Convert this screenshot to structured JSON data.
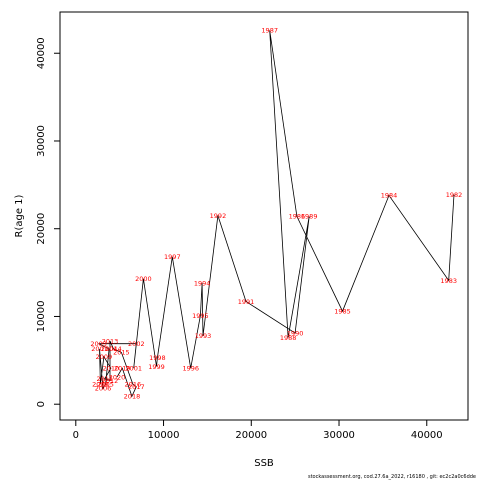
{
  "chart_data": {
    "type": "line",
    "title": "",
    "xlabel": "SSB",
    "ylabel": "R(age 1)",
    "xlim": [
      -1800,
      44700
    ],
    "ylim": [
      -1800,
      44700
    ],
    "xticks": [
      0,
      10000,
      20000,
      30000,
      40000
    ],
    "yticks": [
      0,
      10000,
      20000,
      30000,
      40000
    ],
    "line_color": "#000000",
    "label_color": "#ff0000",
    "points": [
      {
        "label": "1982",
        "x": 43100,
        "y": 23900
      },
      {
        "label": "1983",
        "x": 42500,
        "y": 14100
      },
      {
        "label": "1984",
        "x": 35700,
        "y": 23800
      },
      {
        "label": "1985",
        "x": 30400,
        "y": 10600
      },
      {
        "label": "1986",
        "x": 25200,
        "y": 21400
      },
      {
        "label": "1987",
        "x": 22100,
        "y": 42600
      },
      {
        "label": "1988",
        "x": 24200,
        "y": 7600
      },
      {
        "label": "1989",
        "x": 26600,
        "y": 21400
      },
      {
        "label": "1990",
        "x": 25000,
        "y": 8100
      },
      {
        "label": "1991",
        "x": 19400,
        "y": 11700
      },
      {
        "label": "1992",
        "x": 16200,
        "y": 21500
      },
      {
        "label": "1993",
        "x": 14500,
        "y": 7800
      },
      {
        "label": "1994",
        "x": 14400,
        "y": 13800
      },
      {
        "label": "1995",
        "x": 14200,
        "y": 10100
      },
      {
        "label": "1996",
        "x": 13100,
        "y": 4100
      },
      {
        "label": "1997",
        "x": 11000,
        "y": 16800
      },
      {
        "label": "1998",
        "x": 9300,
        "y": 5300
      },
      {
        "label": "1999",
        "x": 9200,
        "y": 4300
      },
      {
        "label": "2000",
        "x": 7700,
        "y": 14300
      },
      {
        "label": "2001",
        "x": 6600,
        "y": 4100
      },
      {
        "label": "2002",
        "x": 6900,
        "y": 6900
      },
      {
        "label": "2003",
        "x": 2600,
        "y": 6900
      },
      {
        "label": "2004",
        "x": 3800,
        "y": 6300
      },
      {
        "label": "2005",
        "x": 3400,
        "y": 2300
      },
      {
        "label": "2006",
        "x": 3100,
        "y": 1800
      },
      {
        "label": "2007",
        "x": 2700,
        "y": 6300
      },
      {
        "label": "2008",
        "x": 2800,
        "y": 2300
      },
      {
        "label": "2009",
        "x": 3200,
        "y": 5400
      },
      {
        "label": "2010",
        "x": 4000,
        "y": 4100
      },
      {
        "label": "2011",
        "x": 3300,
        "y": 2900
      },
      {
        "label": "2012",
        "x": 3900,
        "y": 2700
      },
      {
        "label": "2013",
        "x": 3900,
        "y": 7200
      },
      {
        "label": "2014",
        "x": 4300,
        "y": 6300
      },
      {
        "label": "2015",
        "x": 5200,
        "y": 5900
      },
      {
        "label": "2016",
        "x": 6500,
        "y": 2300
      },
      {
        "label": "2017",
        "x": 6900,
        "y": 2000
      },
      {
        "label": "2018",
        "x": 6400,
        "y": 900
      },
      {
        "label": "2019",
        "x": 5300,
        "y": 4100
      },
      {
        "label": "2020",
        "x": 4700,
        "y": 3100
      }
    ]
  },
  "footer": "stockassessment.org, cod.27.6a_2022, r16180 , git: ec2c2a0c6dde"
}
